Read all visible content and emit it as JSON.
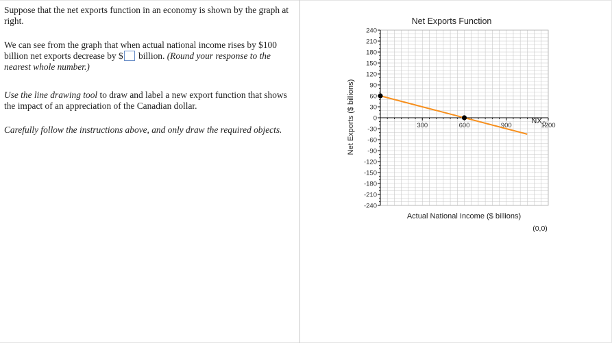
{
  "question": {
    "p1": "Suppose that the net exports function in an economy is shown by the graph at right.",
    "p2_before": "We can see from the graph that when actual national income rises by $100 billion net exports decrease by $",
    "p2_after": " billion.",
    "p2_italic": "(Round your response to the nearest whole number.)",
    "answer_value": "",
    "p3_italic": "Use the line drawing tool",
    "p3_rest": " to draw and label a new export function that shows the impact of an appreciation of the Canadian dollar.",
    "p4_italic": "Carefully follow the instructions above, and only draw the required objects."
  },
  "graph": {
    "title": "Net Exports Function",
    "x_label": "Actual National Income ($ billions)",
    "y_label": "Net Exports ($ billions)",
    "coord_readout": "(0,0)",
    "line_label": "NX",
    "line_label_sub": "0",
    "colors": {
      "line": "#f7901e",
      "point": "#000000",
      "grid": "#c8c8c8",
      "axis": "#000000"
    }
  },
  "chart_data": {
    "type": "line",
    "title": "Net Exports Function",
    "xlabel": "Actual National Income ($ billions)",
    "ylabel": "Net Exports ($ billions)",
    "xlim": [
      0,
      1200
    ],
    "ylim": [
      -240,
      240
    ],
    "x_ticks": [
      300,
      600,
      900,
      1200
    ],
    "y_ticks": [
      240,
      210,
      180,
      150,
      120,
      90,
      60,
      30,
      0,
      -30,
      -60,
      -90,
      -120,
      -150,
      -180,
      -210,
      -240
    ],
    "grid": true,
    "series": [
      {
        "name": "NX0",
        "x": [
          0,
          1050
        ],
        "y": [
          60,
          -45
        ]
      }
    ],
    "points": [
      {
        "x": 0,
        "y": 60
      },
      {
        "x": 600,
        "y": 0
      }
    ]
  }
}
